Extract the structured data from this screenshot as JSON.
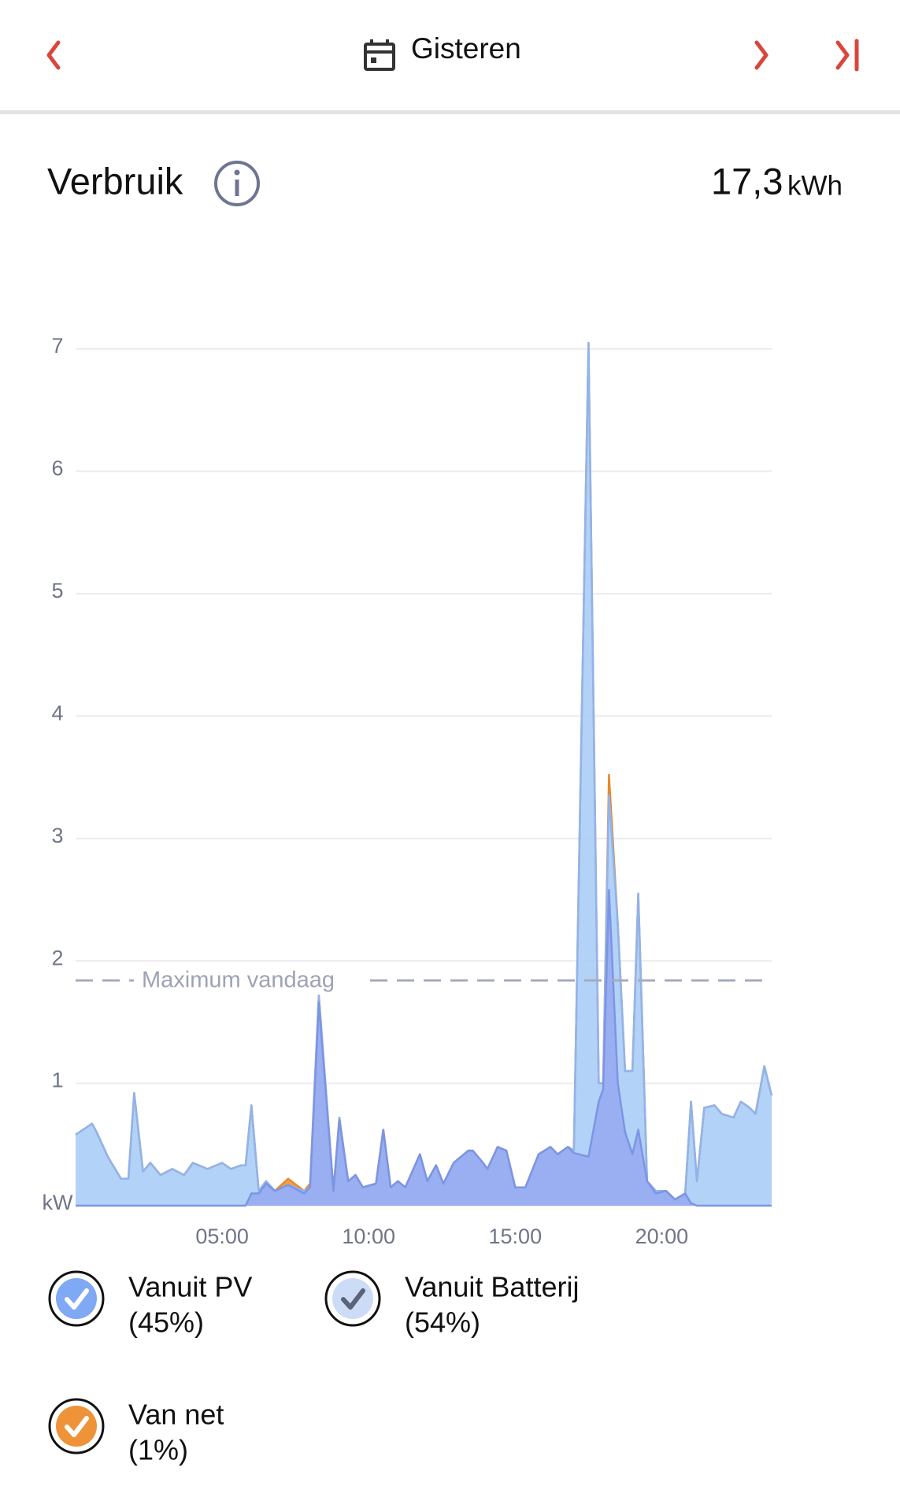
{
  "header": {
    "title": "Gisteren"
  },
  "summary": {
    "title": "Verbruik",
    "total": "17,3",
    "unit": "kWh"
  },
  "chart_data": {
    "type": "stacked-area",
    "x": [
      0,
      0.56,
      0.72,
      1.1,
      1.55,
      1.8,
      2.0,
      2.3,
      2.55,
      2.9,
      3.3,
      3.7,
      4.0,
      4.5,
      5.0,
      5.3,
      5.65,
      5.8,
      6.0,
      6.25,
      6.5,
      6.8,
      7.25,
      7.8,
      8.0,
      8.3,
      8.8,
      9.0,
      9.3,
      9.55,
      9.8,
      10.25,
      10.5,
      10.75,
      11.0,
      11.25,
      11.75,
      12.0,
      12.3,
      12.55,
      12.9,
      13.4,
      13.55,
      13.9,
      14.05,
      14.4,
      14.7,
      15.0,
      15.35,
      15.8,
      16.2,
      16.45,
      16.8,
      17.0,
      17.5,
      17.85,
      18.0,
      18.2,
      18.5,
      18.75,
      19.0,
      19.2,
      19.5,
      19.8,
      20.15,
      20.45,
      20.8,
      21.0,
      21.2,
      21.45,
      21.8,
      22.05,
      22.45,
      22.7,
      23.0,
      23.2,
      23.5,
      23.75
    ],
    "series": [
      {
        "name": "Vanuit PV",
        "legend_note": "(45%)",
        "color": "#8fa6ef",
        "line_color": "#7b95e6",
        "check_color": "#ffffff",
        "box_color": "#7fa8f5",
        "values": [
          0,
          0,
          0,
          0,
          0,
          0,
          0,
          0,
          0,
          0,
          0,
          0,
          0,
          0,
          0,
          0,
          0,
          0,
          0.1,
          0.1,
          0.18,
          0.12,
          0.17,
          0.1,
          0.15,
          1.66,
          0.12,
          0.7,
          0.2,
          0.25,
          0.15,
          0.18,
          0.62,
          0.15,
          0.2,
          0.15,
          0.42,
          0.2,
          0.33,
          0.18,
          0.35,
          0.45,
          0.45,
          0.35,
          0.3,
          0.48,
          0.45,
          0.15,
          0.15,
          0.42,
          0.48,
          0.42,
          0.48,
          0.43,
          0.4,
          0.85,
          0.95,
          2.58,
          1.0,
          0.6,
          0.42,
          0.62,
          0.2,
          0.1,
          0.12,
          0.05,
          0.1,
          0.02,
          0,
          0,
          0,
          0,
          0,
          0,
          0,
          0,
          0,
          0
        ]
      },
      {
        "name": "Vanuit Batterij",
        "legend_note": "(54%)",
        "color": "#aacdf6",
        "line_color": "#8fb4ee",
        "check_color": "#5a6378",
        "box_color": "#cddcf6",
        "values": [
          0.58,
          0.67,
          0.6,
          0.4,
          0.22,
          0.22,
          0.92,
          0.28,
          0.35,
          0.25,
          0.3,
          0.25,
          0.35,
          0.3,
          0.35,
          0.3,
          0.33,
          0.33,
          0.72,
          0.02,
          0.02,
          0,
          0,
          0.02,
          0,
          0.06,
          0,
          0.02,
          0,
          0,
          0,
          0,
          0,
          0,
          0,
          0,
          0,
          0,
          0,
          0,
          0,
          0,
          0,
          0,
          0,
          0,
          0,
          0,
          0,
          0,
          0,
          0,
          0,
          0.02,
          6.65,
          0.15,
          0.05,
          0.77,
          1.3,
          0.5,
          0.68,
          1.93,
          0,
          0.02,
          0,
          0,
          0,
          0.83,
          0.2,
          0.8,
          0.82,
          0.75,
          0.72,
          0.85,
          0.8,
          0.75,
          1.14,
          0.9
        ]
      },
      {
        "name": "Van net",
        "legend_note": "(1%)",
        "color": "#f0963a",
        "line_color": "#e8892c",
        "check_color": "#ffffff",
        "box_color": "#ef9338",
        "values": [
          0,
          0,
          0,
          0,
          0,
          0,
          0,
          0,
          0,
          0,
          0,
          0,
          0,
          0,
          0,
          0,
          0,
          0,
          0,
          0,
          0,
          0,
          0.05,
          0,
          0.03,
          0,
          0,
          0,
          0,
          0,
          0,
          0,
          0,
          0,
          0,
          0,
          0,
          0,
          0,
          0,
          0,
          0,
          0,
          0,
          0,
          0,
          0,
          0,
          0,
          0,
          0,
          0,
          0,
          0,
          0,
          0,
          0,
          0.17,
          0,
          0,
          0,
          0,
          0,
          0,
          0,
          0,
          0,
          0,
          0,
          0,
          0,
          0,
          0,
          0,
          0,
          0,
          0,
          0
        ]
      }
    ],
    "xlim": [
      0,
      23.75
    ],
    "xticks": [
      {
        "value": 5,
        "label": "05:00"
      },
      {
        "value": 10,
        "label": "10:00"
      },
      {
        "value": 15,
        "label": "15:00"
      },
      {
        "value": 20,
        "label": "20:00"
      }
    ],
    "ylim": [
      0,
      7
    ],
    "yticks": [
      {
        "value": 0,
        "label": "kW"
      },
      1,
      2,
      3,
      4,
      5,
      6,
      7
    ],
    "grid": true,
    "annotations": [
      {
        "text": "Maximum vandaag",
        "y": 1.84
      }
    ]
  }
}
